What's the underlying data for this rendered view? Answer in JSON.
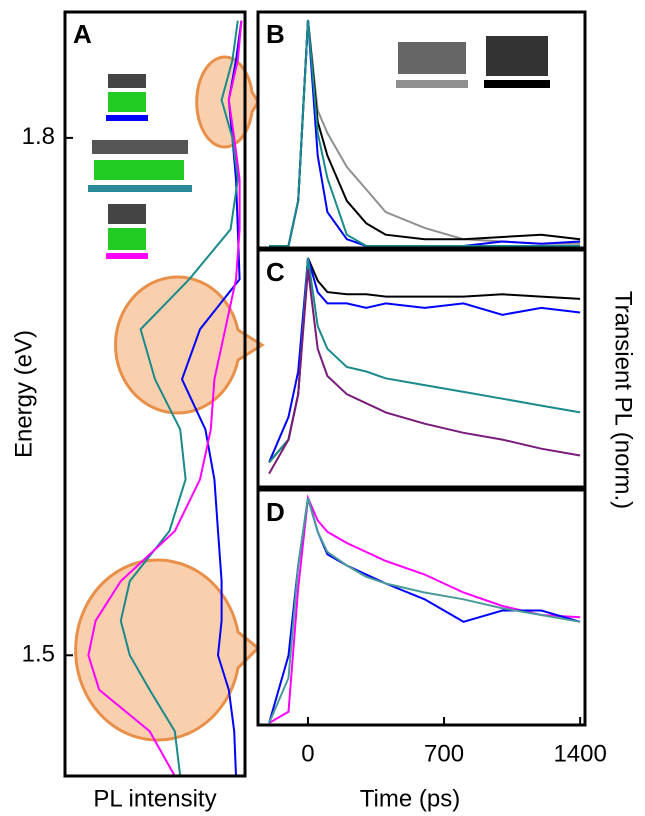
{
  "chart_data": [
    {
      "type": "spectrum",
      "label": "A",
      "ylabel": "Energy (eV)",
      "xlabel": "PL intensity",
      "ylim": [
        1.43,
        1.873
      ],
      "yticks": [
        1.5,
        1.8
      ],
      "xlim": [
        1,
        0
      ],
      "energy": [
        1.868,
        1.845,
        1.822,
        1.8,
        1.776,
        1.747,
        1.718,
        1.689,
        1.66,
        1.631,
        1.602,
        1.572,
        1.543,
        1.52,
        1.5,
        1.48,
        1.456,
        1.43
      ],
      "series": [
        {
          "color": "#0000ff",
          "values": [
            0.02,
            0.05,
            0.09,
            0.07,
            0.05,
            0.04,
            0.03,
            0.25,
            0.35,
            0.22,
            0.17,
            0.15,
            0.13,
            0.13,
            0.15,
            0.09,
            0.06,
            0.05
          ]
        },
        {
          "color": "#1a8a8a",
          "values": [
            0.04,
            0.07,
            0.13,
            0.07,
            0.04,
            0.08,
            0.31,
            0.58,
            0.5,
            0.36,
            0.33,
            0.42,
            0.64,
            0.69,
            0.64,
            0.53,
            0.39,
            0.36
          ]
        },
        {
          "color": "#ff00ff",
          "values": [
            0.02,
            0.04,
            0.09,
            0.06,
            0.03,
            0.03,
            0.05,
            0.11,
            0.17,
            0.19,
            0.25,
            0.39,
            0.69,
            0.83,
            0.87,
            0.81,
            0.53,
            0.39
          ]
        }
      ]
    },
    {
      "type": "line",
      "label": "B",
      "xlim": [
        -257,
        1425
      ],
      "ylim": [
        0,
        1
      ],
      "x": [
        -200,
        -100,
        -50,
        0,
        50,
        100,
        200,
        300,
        400,
        600,
        800,
        1000,
        1200,
        1400
      ],
      "series": [
        {
          "color": "#909090",
          "values": [
            0,
            0,
            0.2,
            1,
            0.6,
            0.5,
            0.35,
            0.25,
            0.15,
            0.08,
            0.03,
            0.02,
            0.01,
            0.01
          ]
        },
        {
          "color": "#000000",
          "values": [
            0,
            0,
            0.2,
            1,
            0.55,
            0.4,
            0.2,
            0.1,
            0.05,
            0.03,
            0.03,
            0.04,
            0.05,
            0.03
          ]
        },
        {
          "color": "#0000ff",
          "values": [
            0,
            0,
            0.2,
            1,
            0.4,
            0.15,
            0.03,
            0,
            0,
            0,
            0,
            0.02,
            0.01,
            0.02
          ]
        },
        {
          "color": "#1a8a8a",
          "values": [
            0,
            0,
            0.2,
            1,
            0.5,
            0.3,
            0.05,
            0,
            0,
            0,
            0,
            0,
            0,
            0
          ]
        }
      ]
    },
    {
      "type": "line",
      "label": "C",
      "ylabel": "Transient PL (norm.)",
      "xlim": [
        -257,
        1425
      ],
      "ylim": [
        0,
        1
      ],
      "x": [
        -200,
        -100,
        -50,
        0,
        50,
        100,
        200,
        300,
        400,
        600,
        800,
        1000,
        1200,
        1400
      ],
      "series": [
        {
          "color": "#000000",
          "values": [
            0.1,
            0.2,
            0.4,
            1,
            0.9,
            0.85,
            0.84,
            0.84,
            0.83,
            0.83,
            0.83,
            0.84,
            0.83,
            0.82
          ]
        },
        {
          "color": "#0000ff",
          "values": [
            0.1,
            0.3,
            0.5,
            1,
            0.85,
            0.8,
            0.8,
            0.78,
            0.8,
            0.78,
            0.8,
            0.75,
            0.78,
            0.76
          ]
        },
        {
          "color": "#1a8a8a",
          "values": [
            0.1,
            0.2,
            0.4,
            1,
            0.7,
            0.6,
            0.52,
            0.5,
            0.47,
            0.44,
            0.41,
            0.38,
            0.35,
            0.32
          ]
        },
        {
          "color": "#7a1a7a",
          "values": [
            0.05,
            0.2,
            0.4,
            0.95,
            0.6,
            0.48,
            0.4,
            0.36,
            0.32,
            0.27,
            0.23,
            0.2,
            0.16,
            0.13
          ]
        }
      ]
    },
    {
      "type": "line",
      "label": "D",
      "xlabel": "Time (ps)",
      "xlim": [
        -257,
        1425
      ],
      "ylim": [
        0,
        1
      ],
      "xticks": [
        0,
        700,
        1400
      ],
      "x": [
        -200,
        -100,
        -50,
        0,
        50,
        100,
        200,
        300,
        400,
        600,
        800,
        1000,
        1200,
        1400
      ],
      "series": [
        {
          "color": "#ff00ff",
          "values": [
            0,
            0.05,
            0.6,
            1,
            0.9,
            0.85,
            0.8,
            0.76,
            0.72,
            0.66,
            0.58,
            0.52,
            0.48,
            0.47
          ]
        },
        {
          "color": "#0000ff",
          "values": [
            0,
            0.3,
            0.7,
            1,
            0.85,
            0.75,
            0.7,
            0.66,
            0.62,
            0.55,
            0.45,
            0.5,
            0.5,
            0.45
          ]
        },
        {
          "color": "#4a9a9a",
          "values": [
            0,
            0.2,
            0.7,
            1,
            0.85,
            0.76,
            0.7,
            0.65,
            0.62,
            0.58,
            0.55,
            0.51,
            0.48,
            0.45
          ]
        }
      ]
    }
  ]
}
